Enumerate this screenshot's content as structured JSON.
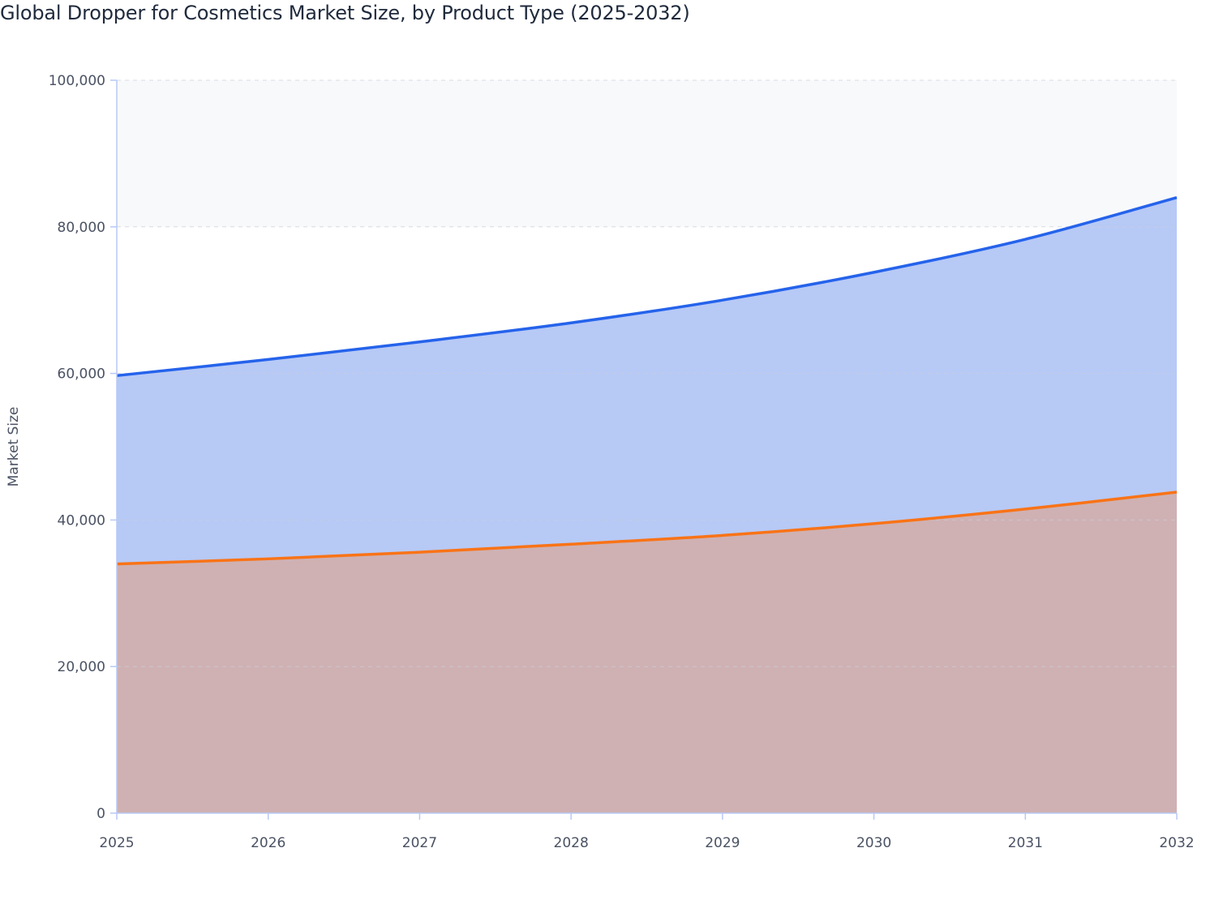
{
  "chart_data": {
    "type": "area",
    "title": "Global Dropper for Cosmetics Market Size, by Product Type (2025-2032)",
    "xlabel": "",
    "ylabel": "Market Size",
    "x": [
      2025,
      2026,
      2027,
      2028,
      2029,
      2030,
      2031,
      2032
    ],
    "ylim": [
      0,
      100000
    ],
    "yticks": [
      0,
      20000,
      40000,
      60000,
      80000,
      100000
    ],
    "ytick_labels": [
      "0",
      "20,000",
      "40,000",
      "60,000",
      "80,000",
      "100,000"
    ],
    "xtick_labels": [
      "2025",
      "2026",
      "2027",
      "2028",
      "2029",
      "2030",
      "2031",
      "2032"
    ],
    "grid": true,
    "legend": "none",
    "series": [
      {
        "values": [
          59700,
          61900,
          64300,
          66900,
          70000,
          73800,
          78300,
          84000
        ],
        "color": "#2563eb",
        "fill": "#b7c9f5"
      },
      {
        "values": [
          34000,
          34700,
          35600,
          36700,
          37900,
          39500,
          41500,
          43800
        ],
        "color": "#f97316",
        "fill": "#cfb1b3"
      }
    ]
  }
}
